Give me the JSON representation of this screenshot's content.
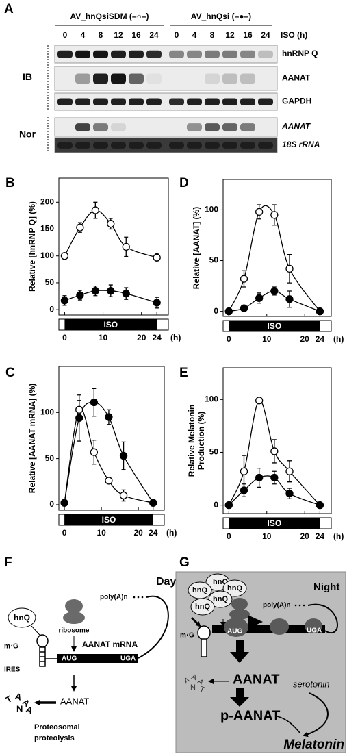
{
  "panel_a": {
    "letter": "A",
    "groups": [
      "AV_hnQsiSDM (–○–)",
      "AV_hnQsi (–●–)"
    ],
    "lanes": [
      "0",
      "4",
      "8",
      "12",
      "16",
      "24"
    ],
    "lane_unit": "ISO (h)",
    "rows": [
      {
        "label": "hnRNP Q",
        "italic": false
      },
      {
        "label": "AANAT",
        "italic": false
      },
      {
        "label": "GAPDH",
        "italic": false
      },
      {
        "label": "AANAT",
        "italic": true
      },
      {
        "label": "18S rRNA",
        "italic": true
      }
    ],
    "sections": [
      "IB",
      "Nor"
    ]
  },
  "chart_data": [
    {
      "panel": "B",
      "type": "line",
      "y_label": "Relative [hnRNP Q] (%)",
      "x": [
        0,
        4,
        8,
        12,
        16,
        24
      ],
      "xlim": [
        -1.5,
        27
      ],
      "xticks": [
        0,
        10,
        20,
        24
      ],
      "x_unit": "(h)",
      "bar_label": "ISO",
      "ylim": [
        -10,
        245
      ],
      "yticks": [
        0,
        50,
        100,
        150,
        200
      ],
      "series": [
        {
          "marker": "open",
          "color": "#000000",
          "values": [
            100,
            153,
            185,
            160,
            117,
            97
          ],
          "errors": [
            4,
            9,
            15,
            10,
            18,
            8
          ]
        },
        {
          "marker": "filled",
          "color": "#000000",
          "values": [
            17,
            27,
            35,
            35,
            30,
            13
          ],
          "errors": [
            9,
            9,
            9,
            11,
            11,
            10
          ]
        }
      ]
    },
    {
      "panel": "D",
      "type": "line",
      "y_label": "Relative [AANAT] (%)",
      "x": [
        0,
        4,
        8,
        12,
        16,
        24
      ],
      "xlim": [
        -1.5,
        27
      ],
      "xticks": [
        0,
        10,
        20,
        24
      ],
      "x_unit": "(h)",
      "bar_label": "ISO",
      "ylim": [
        -5,
        130
      ],
      "yticks": [
        0,
        50,
        100
      ],
      "series": [
        {
          "marker": "open",
          "color": "#000000",
          "values": [
            0,
            32,
            98,
            95,
            42,
            0
          ],
          "errors": [
            0,
            8,
            7,
            10,
            14,
            0
          ]
        },
        {
          "marker": "filled",
          "color": "#000000",
          "values": [
            0,
            3,
            13,
            20,
            12,
            0
          ],
          "errors": [
            0,
            2,
            5,
            4,
            8,
            0
          ]
        }
      ]
    },
    {
      "panel": "C",
      "type": "line",
      "y_label": "Relative [AANAT mRNA] (%)",
      "x": [
        0,
        4,
        8,
        12,
        16,
        24
      ],
      "xlim": [
        -1.5,
        27
      ],
      "xticks": [
        0,
        10,
        20,
        24
      ],
      "x_unit": "(h)",
      "bar_label": "ISO",
      "ylim": [
        -6,
        150
      ],
      "yticks": [
        0,
        50,
        100
      ],
      "series": [
        {
          "marker": "open",
          "color": "#000000",
          "values": [
            2,
            103,
            57,
            26,
            10,
            2
          ],
          "errors": [
            0,
            10,
            13,
            3,
            6,
            0
          ]
        },
        {
          "marker": "filled",
          "color": "#000000",
          "values": [
            2,
            94,
            111,
            95,
            53,
            2
          ],
          "errors": [
            0,
            25,
            15,
            8,
            15,
            0
          ]
        }
      ]
    },
    {
      "panel": "E",
      "type": "line",
      "y_label": [
        "Relative Melatonin",
        "Production (%)"
      ],
      "x": [
        0,
        4,
        8,
        12,
        16,
        24
      ],
      "xlim": [
        -1.5,
        27
      ],
      "xticks": [
        0,
        10,
        20,
        24
      ],
      "x_unit": "(h)",
      "bar_label": "ISO",
      "ylim": [
        -8,
        130
      ],
      "yticks": [
        0,
        50,
        100
      ],
      "series": [
        {
          "marker": "open",
          "color": "#000000",
          "values": [
            0,
            32,
            99,
            51,
            32,
            0
          ],
          "errors": [
            0,
            15,
            0,
            11,
            10,
            0
          ]
        },
        {
          "marker": "filled",
          "color": "#000000",
          "values": [
            0,
            14,
            26,
            26,
            11,
            0
          ],
          "errors": [
            0,
            6,
            9,
            6,
            5,
            0
          ]
        }
      ]
    }
  ],
  "panel_f": {
    "letter": "F",
    "phase": "Day",
    "protein": "hnQ",
    "ribosome": "ribosome",
    "cap": "m⁷G",
    "mrna": "AANAT mRNA",
    "ires": "IRES",
    "tail": "poly(A)n",
    "start": "AUG",
    "stop": "UGA",
    "product": "AANAT",
    "fate": [
      "Proteosomal",
      "proteolysis"
    ],
    "fragments": [
      "T",
      "A",
      "A",
      "N",
      "A"
    ]
  },
  "panel_g": {
    "letter": "G",
    "phase": "Night",
    "proteins": [
      "hnQ",
      "hnQ",
      "hnQ",
      "hnQ",
      "hnQ"
    ],
    "tail": "poly(A)n",
    "cap": "m⁷G",
    "start": "AUG",
    "stop": "UGA",
    "product": "AANAT",
    "modified": "p-AANAT",
    "substrate": "serotonin",
    "end_product": "Melatonin",
    "fragments": [
      "A",
      "A",
      "A",
      "N",
      "T"
    ]
  }
}
